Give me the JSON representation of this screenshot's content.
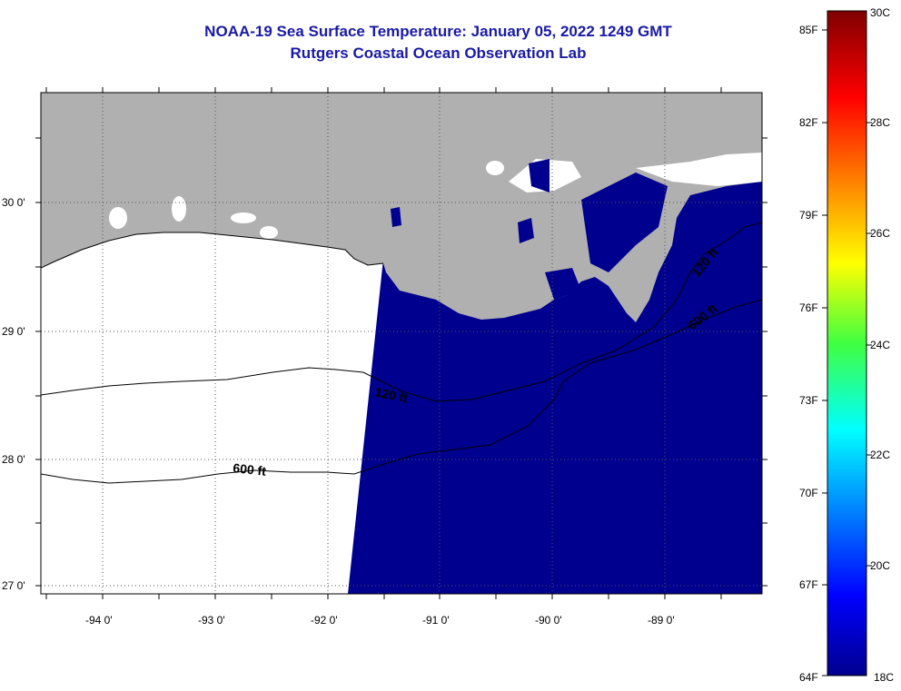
{
  "title_line1": "NOAA-19 Sea Surface Temperature:  January 05, 2022 1249 GMT",
  "title_line2": "Rutgers Coastal Ocean Observation Lab",
  "lon_labels": [
    "-94 0'",
    "-93 0'",
    "-92 0'",
    "-91 0'",
    "-90 0'",
    "-89 0'"
  ],
  "lat_labels": [
    "30 0'",
    "29 0'",
    "28 0'",
    "27 0'"
  ],
  "contour_labels": {
    "shelf_120_west": "120 ft",
    "shelf_600_west": "600 ft",
    "shelf_120_east": "120 ft",
    "shelf_600_east": "600 ft"
  },
  "colorbar": {
    "fahrenheit_labels": [
      "85F",
      "82F",
      "79F",
      "76F",
      "73F",
      "70F",
      "67F",
      "64F"
    ],
    "celsius_labels": [
      "30C",
      "28C",
      "26C",
      "24C",
      "22C",
      "20C",
      "18C"
    ]
  },
  "colors": {
    "title": "#1a1aa6",
    "land": "#b0b0b0",
    "sea_cold": "#00008f",
    "no_data": "#ffffff"
  }
}
